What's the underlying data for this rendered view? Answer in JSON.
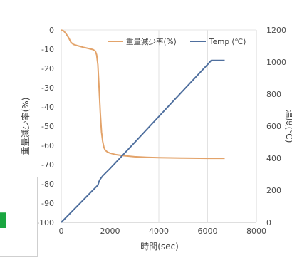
{
  "chart_data": {
    "type": "line",
    "xlabel": "時間(sec)",
    "ylabel_left": "重量減少率(%)",
    "ylabel_right": "温度(℃)",
    "xlim": [
      0,
      8000
    ],
    "xticks": [
      0,
      2000,
      4000,
      6000,
      8000
    ],
    "ylim_left": [
      -100,
      0
    ],
    "yticks_left": [
      0,
      -10,
      -20,
      -30,
      -40,
      -50,
      -60,
      -70,
      -80,
      -90,
      -100
    ],
    "ylim_right": [
      0,
      1200
    ],
    "yticks_right": [
      0,
      200,
      400,
      600,
      800,
      1000,
      1200
    ],
    "grid": "vertical",
    "legend_position": "top-right",
    "series": [
      {
        "name": "重量減少率(%)",
        "axis": "left",
        "color": "#e3a36a",
        "x": [
          0,
          100,
          200,
          300,
          400,
          500,
          700,
          900,
          1100,
          1300,
          1400,
          1450,
          1500,
          1550,
          1600,
          1650,
          1700,
          1750,
          1800,
          1900,
          2000,
          2200,
          2500,
          3000,
          3500,
          4000,
          5000,
          6000,
          6700
        ],
        "y": [
          0,
          -0.5,
          -2,
          -4,
          -6.5,
          -7.5,
          -8.3,
          -9,
          -9.6,
          -10.2,
          -11,
          -13,
          -18,
          -30,
          -43,
          -53,
          -58,
          -61,
          -62.5,
          -63.5,
          -64,
          -64.7,
          -65.3,
          -65.9,
          -66.2,
          -66.4,
          -66.6,
          -66.7,
          -66.7
        ]
      },
      {
        "name": "Temp (℃)",
        "axis": "right",
        "color": "#4f6f9e",
        "x": [
          0,
          1500,
          1550,
          1600,
          1700,
          2000,
          3000,
          4000,
          5000,
          6000,
          6150,
          6700
        ],
        "y": [
          0,
          232,
          255,
          270,
          290,
          335,
          497,
          660,
          823,
          985,
          1010,
          1010
        ]
      }
    ]
  }
}
